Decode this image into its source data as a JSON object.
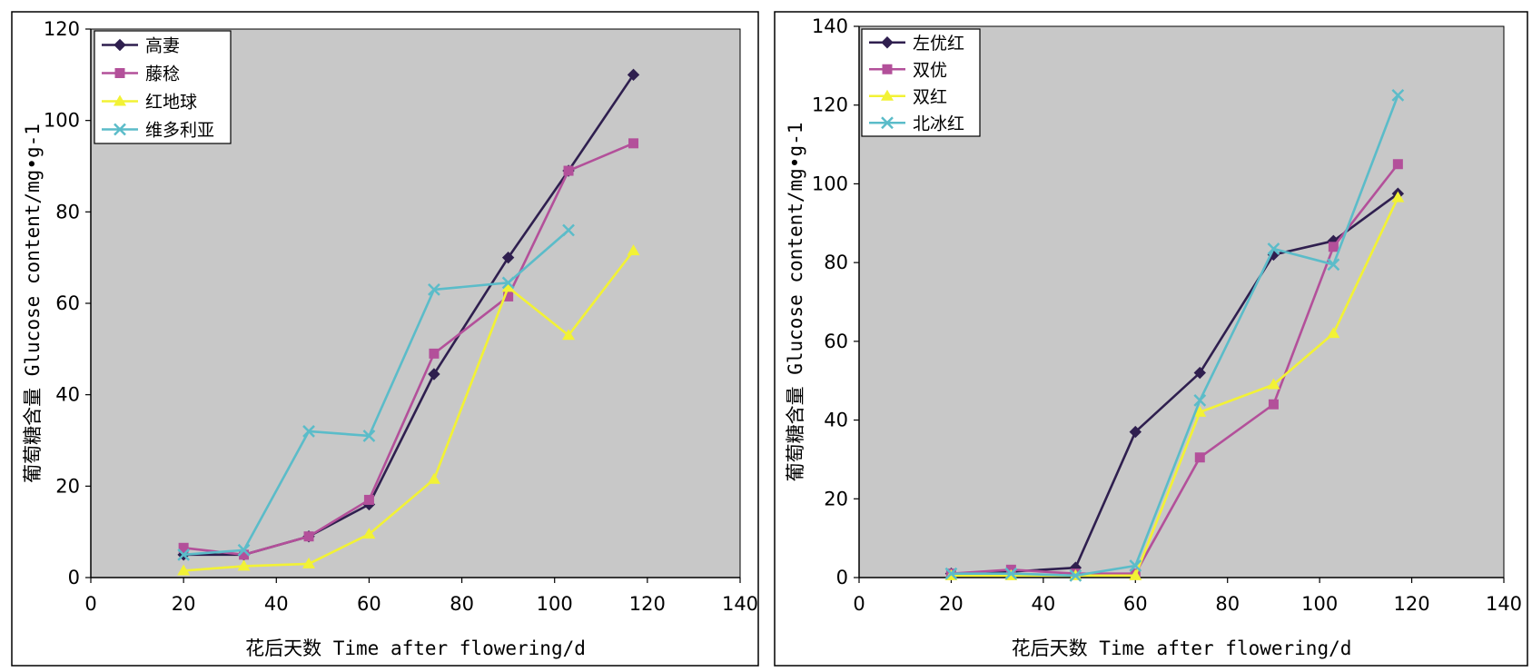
{
  "chart_data": [
    {
      "type": "line",
      "xlabel": "花后天数  Time after flowering/d",
      "ylabel": "葡萄糖含量  Glucose content/mg•g-1",
      "xlim": [
        0,
        140
      ],
      "ylim": [
        0,
        120
      ],
      "xticks": [
        0,
        20,
        40,
        60,
        80,
        100,
        120,
        140
      ],
      "yticks": [
        0,
        20,
        40,
        60,
        80,
        100,
        120
      ],
      "legend_position": "top-left",
      "series": [
        {
          "name": "高妻",
          "color": "#2f1f4f",
          "marker": "diamond",
          "x": [
            20,
            33,
            47,
            60,
            74,
            90,
            103,
            117
          ],
          "y": [
            5,
            5,
            9,
            16,
            44.5,
            70,
            89,
            110
          ]
        },
        {
          "name": "藤稔",
          "color": "#b3509a",
          "marker": "square",
          "x": [
            20,
            33,
            47,
            60,
            74,
            90,
            103,
            117
          ],
          "y": [
            6.5,
            5,
            9,
            17,
            49,
            61.5,
            89,
            95
          ]
        },
        {
          "name": "红地球",
          "color": "#f2f235",
          "marker": "triangle",
          "x": [
            20,
            33,
            47,
            60,
            74,
            90,
            103,
            117
          ],
          "y": [
            1.5,
            2.5,
            3,
            9.5,
            21.5,
            63.5,
            53,
            71.5
          ]
        },
        {
          "name": "维多利亚",
          "color": "#5bbcc9",
          "marker": "cross",
          "x": [
            20,
            33,
            47,
            60,
            74,
            90,
            103
          ],
          "y": [
            5,
            6,
            32,
            31,
            63,
            64.5,
            76
          ]
        }
      ]
    },
    {
      "type": "line",
      "xlabel": "花后天数  Time after flowering/d",
      "ylabel": "葡萄糖含量  Glucose content/mg•g-1",
      "xlim": [
        0,
        140
      ],
      "ylim": [
        0,
        140
      ],
      "xticks": [
        0,
        20,
        40,
        60,
        80,
        100,
        120,
        140
      ],
      "yticks": [
        0,
        20,
        40,
        60,
        80,
        100,
        120,
        140
      ],
      "legend_position": "top-left",
      "series": [
        {
          "name": "左优红",
          "color": "#2f1f4f",
          "marker": "diamond",
          "x": [
            20,
            33,
            47,
            60,
            74,
            90,
            103,
            117
          ],
          "y": [
            1,
            1.5,
            2.5,
            37,
            52,
            82,
            85.5,
            97.5
          ]
        },
        {
          "name": "双优",
          "color": "#b3509a",
          "marker": "square",
          "x": [
            20,
            33,
            47,
            60,
            74,
            90,
            103,
            117
          ],
          "y": [
            1,
            2,
            1,
            1,
            30.5,
            44,
            84,
            105
          ]
        },
        {
          "name": "双红",
          "color": "#f2f235",
          "marker": "triangle",
          "x": [
            20,
            33,
            47,
            60,
            74,
            90,
            103,
            117
          ],
          "y": [
            0.5,
            0.5,
            0.5,
            0.5,
            42,
            49,
            62,
            96.5
          ]
        },
        {
          "name": "北冰红",
          "color": "#5bbcc9",
          "marker": "cross",
          "x": [
            20,
            33,
            47,
            60,
            74,
            90,
            103,
            117
          ],
          "y": [
            1,
            1,
            0.5,
            3,
            45,
            83.5,
            79.5,
            122.5
          ]
        }
      ]
    }
  ]
}
